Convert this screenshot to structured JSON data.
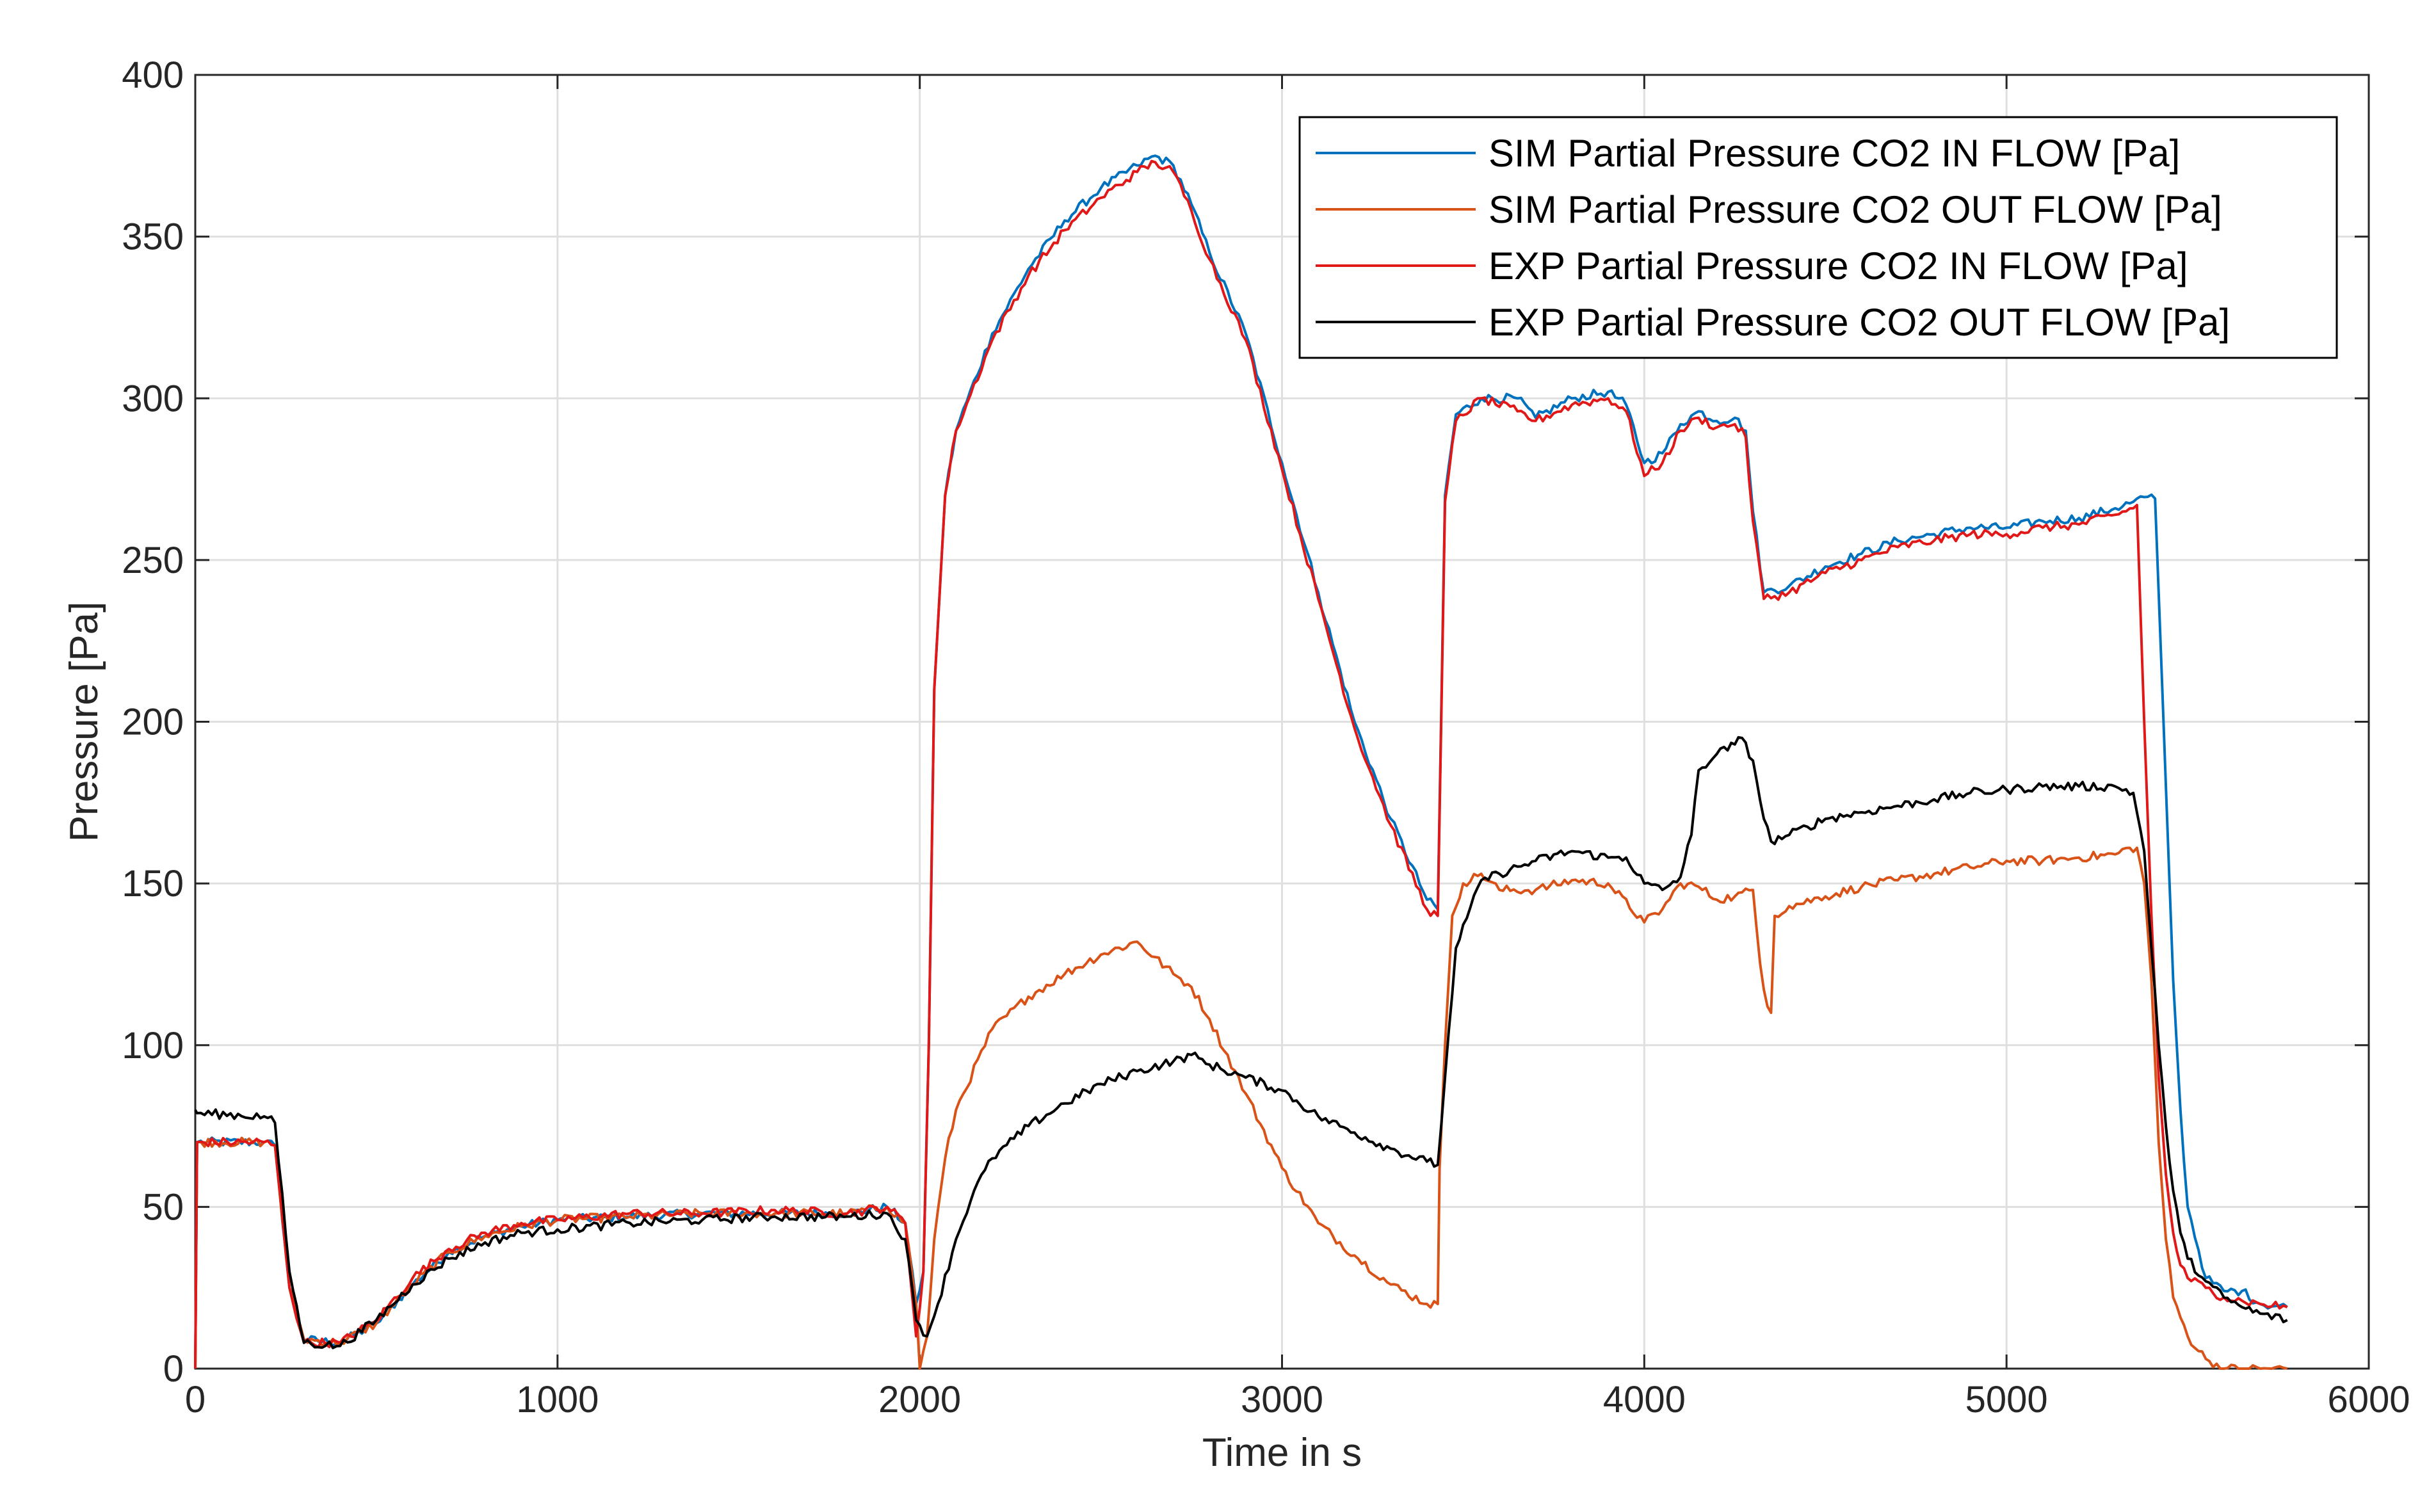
{
  "chart_data": {
    "type": "line",
    "title": "",
    "xlabel": "Time in s",
    "ylabel": "Pressure [Pa]",
    "xlim": [
      0,
      6000
    ],
    "ylim": [
      0,
      400
    ],
    "xticks": [
      0,
      1000,
      2000,
      3000,
      4000,
      5000,
      6000
    ],
    "yticks": [
      0,
      50,
      100,
      150,
      200,
      250,
      300,
      350,
      400
    ],
    "xtick_labels": [
      "0",
      "1000",
      "2000",
      "3000",
      "4000",
      "5000",
      "6000"
    ],
    "ytick_labels": [
      "0",
      "50",
      "100",
      "150",
      "200",
      "250",
      "300",
      "350",
      "400"
    ],
    "grid": true,
    "legend_position": "top-right",
    "series": [
      {
        "name": "SIM Partial Pressure CO2 IN FLOW [Pa]",
        "color": "#0072BD",
        "x": [
          0,
          5,
          190,
          220,
          260,
          300,
          400,
          500,
          600,
          700,
          800,
          900,
          1000,
          1200,
          1400,
          1600,
          1800,
          1910,
          1960,
          1990,
          2010,
          2025,
          2040,
          2070,
          2100,
          2200,
          2300,
          2400,
          2500,
          2600,
          2650,
          2700,
          2750,
          2800,
          2900,
          3000,
          3100,
          3200,
          3300,
          3400,
          3430,
          3450,
          3480,
          3550,
          3650,
          3700,
          3800,
          3900,
          3950,
          4000,
          4050,
          4100,
          4150,
          4200,
          4250,
          4280,
          4300,
          4330,
          4400,
          4500,
          4600,
          4700,
          4800,
          4900,
          5000,
          5100,
          5200,
          5300,
          5350,
          5360,
          5410,
          5420,
          5440,
          5460,
          5480,
          5500,
          5550,
          5600,
          5650,
          5700,
          5775
        ],
        "y": [
          0,
          70,
          70,
          69,
          25,
          9,
          8,
          14,
          26,
          36,
          41,
          44,
          46,
          47,
          48,
          48,
          48,
          50,
          45,
          20,
          30,
          100,
          210,
          270,
          290,
          320,
          340,
          355,
          365,
          372,
          375,
          372,
          360,
          345,
          320,
          280,
          240,
          200,
          170,
          145,
          142,
          270,
          295,
          300,
          300,
          294,
          300,
          302,
          298,
          280,
          283,
          292,
          296,
          293,
          294,
          290,
          265,
          240,
          242,
          248,
          252,
          256,
          258,
          260,
          260,
          262,
          263,
          266,
          268,
          269,
          269,
          240,
          180,
          120,
          80,
          50,
          28,
          24,
          24,
          20,
          19
        ]
      },
      {
        "name": "SIM Partial Pressure CO2 OUT FLOW [Pa]",
        "color": "#D95319",
        "x": [
          0,
          5,
          190,
          220,
          260,
          300,
          400,
          500,
          600,
          700,
          800,
          900,
          1000,
          1200,
          1400,
          1600,
          1800,
          1910,
          1960,
          1990,
          2000,
          2020,
          2040,
          2070,
          2100,
          2200,
          2300,
          2400,
          2500,
          2600,
          2700,
          2750,
          2800,
          2900,
          3000,
          3100,
          3200,
          3300,
          3400,
          3430,
          3435,
          3450,
          3470,
          3500,
          3550,
          3600,
          3700,
          3800,
          3900,
          4000,
          4050,
          4100,
          4150,
          4200,
          4250,
          4300,
          4320,
          4340,
          4350,
          4360,
          4400,
          4500,
          4600,
          4700,
          4800,
          4900,
          5000,
          5100,
          5200,
          5300,
          5340,
          5360,
          5380,
          5400,
          5420,
          5440,
          5460,
          5500,
          5550,
          5600,
          5650,
          5700,
          5775
        ],
        "y": [
          0,
          70,
          70,
          69,
          25,
          9,
          8,
          14,
          26,
          36,
          41,
          44,
          46,
          47,
          48,
          48,
          48,
          50,
          45,
          20,
          0,
          10,
          40,
          65,
          80,
          105,
          115,
          122,
          128,
          132,
          122,
          118,
          108,
          85,
          62,
          45,
          35,
          26,
          20,
          20,
          62,
          100,
          140,
          150,
          153,
          148,
          148,
          151,
          150,
          138,
          142,
          150,
          149,
          145,
          146,
          148,
          125,
          112,
          110,
          140,
          143,
          146,
          149,
          151,
          153,
          155,
          157,
          157,
          158,
          159,
          161,
          161,
          150,
          120,
          70,
          40,
          22,
          10,
          3,
          0,
          0,
          0,
          0
        ]
      },
      {
        "name": "EXP Partial Pressure CO2 IN FLOW [Pa]",
        "color": "#E01818",
        "x": [
          0,
          5,
          190,
          220,
          260,
          300,
          400,
          500,
          600,
          700,
          800,
          900,
          1000,
          1200,
          1400,
          1600,
          1800,
          1910,
          1960,
          1990,
          2010,
          2025,
          2040,
          2070,
          2100,
          2200,
          2300,
          2400,
          2500,
          2600,
          2650,
          2700,
          2750,
          2800,
          2900,
          3000,
          3100,
          3200,
          3300,
          3400,
          3430,
          3450,
          3480,
          3550,
          3650,
          3700,
          3800,
          3900,
          3950,
          4000,
          4050,
          4100,
          4150,
          4200,
          4250,
          4280,
          4300,
          4330,
          4400,
          4500,
          4600,
          4700,
          4800,
          4900,
          5000,
          5100,
          5200,
          5300,
          5350,
          5360,
          5380,
          5400,
          5420,
          5440,
          5460,
          5480,
          5500,
          5550,
          5600,
          5650,
          5700,
          5775
        ],
        "y": [
          0,
          70,
          70,
          69,
          25,
          8,
          8,
          15,
          28,
          37,
          42,
          45,
          46,
          48,
          48,
          49,
          48,
          50,
          45,
          10,
          30,
          100,
          210,
          270,
          290,
          318,
          338,
          352,
          362,
          370,
          373,
          370,
          358,
          343,
          318,
          278,
          238,
          198,
          168,
          142,
          140,
          268,
          293,
          300,
          296,
          293,
          298,
          300,
          296,
          276,
          280,
          290,
          294,
          291,
          292,
          288,
          262,
          238,
          240,
          246,
          250,
          254,
          256,
          258,
          258,
          260,
          261,
          264,
          266,
          267,
          200,
          140,
          90,
          60,
          42,
          32,
          28,
          25,
          22,
          21,
          20,
          19
        ]
      },
      {
        "name": "EXP Partial Pressure CO2 OUT FLOW [Pa]",
        "color": "#000000",
        "x": [
          0,
          5,
          190,
          220,
          260,
          300,
          400,
          500,
          600,
          700,
          800,
          900,
          1000,
          1200,
          1400,
          1600,
          1800,
          1910,
          1960,
          1990,
          2020,
          2050,
          2100,
          2150,
          2200,
          2300,
          2400,
          2500,
          2600,
          2700,
          2750,
          2800,
          2900,
          3000,
          3100,
          3200,
          3300,
          3400,
          3430,
          3450,
          3480,
          3550,
          3600,
          3700,
          3800,
          3900,
          3950,
          4000,
          4050,
          4100,
          4130,
          4150,
          4200,
          4250,
          4270,
          4300,
          4330,
          4350,
          4400,
          4500,
          4600,
          4700,
          4800,
          4900,
          5000,
          5100,
          5200,
          5300,
          5350,
          5380,
          5400,
          5420,
          5440,
          5460,
          5480,
          5500,
          5550,
          5600,
          5650,
          5700,
          5775
        ],
        "y": [
          80,
          79,
          78,
          76,
          30,
          8,
          7,
          15,
          26,
          34,
          39,
          42,
          43,
          45,
          46,
          47,
          47,
          48,
          40,
          15,
          10,
          20,
          40,
          55,
          65,
          75,
          82,
          88,
          92,
          95,
          97,
          94,
          90,
          86,
          78,
          73,
          68,
          64,
          63,
          90,
          130,
          151,
          153,
          157,
          160,
          158,
          158,
          150,
          148,
          152,
          165,
          185,
          190,
          193,
          195,
          188,
          170,
          163,
          165,
          170,
          172,
          174,
          176,
          178,
          179,
          180,
          180,
          180,
          178,
          160,
          130,
          100,
          75,
          55,
          42,
          34,
          27,
          22,
          19,
          17,
          15
        ]
      }
    ]
  }
}
